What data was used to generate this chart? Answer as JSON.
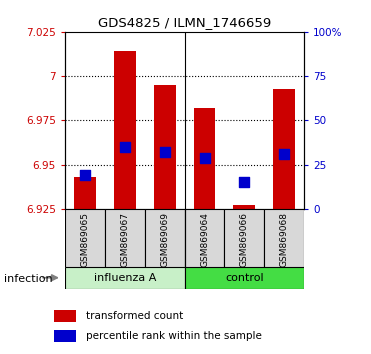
{
  "title": "GDS4825 / ILMN_1746659",
  "samples": [
    "GSM869065",
    "GSM869067",
    "GSM869069",
    "GSM869064",
    "GSM869066",
    "GSM869068"
  ],
  "bar_bottom": 6.925,
  "bar_tops": [
    6.943,
    7.014,
    6.995,
    6.982,
    6.927,
    6.993
  ],
  "blue_dots": [
    6.944,
    6.96,
    6.957,
    6.954,
    6.94,
    6.956
  ],
  "ylim_left": [
    6.925,
    7.025
  ],
  "yticks_left": [
    6.925,
    6.95,
    6.975,
    7.0,
    7.025
  ],
  "ytick_labels_left": [
    "6.925",
    "6.95",
    "6.975",
    "7",
    "7.025"
  ],
  "ylim_right": [
    0,
    100
  ],
  "yticks_right": [
    0,
    25,
    50,
    75,
    100
  ],
  "ytick_labels_right": [
    "0",
    "25",
    "50",
    "75",
    "100%"
  ],
  "bar_color": "#cc0000",
  "dot_color": "#0000cc",
  "left_label_color": "#cc0000",
  "right_label_color": "#0000cc",
  "xlabel_infection": "infection",
  "legend_bar_label": "transformed count",
  "legend_dot_label": "percentile rank within the sample",
  "bar_width": 0.55,
  "dot_size": 55,
  "influenza_color": "#c8f0c8",
  "control_color": "#44dd44",
  "gray_box_color": "#d8d8d8",
  "n_groups": 6,
  "group_split": 3
}
